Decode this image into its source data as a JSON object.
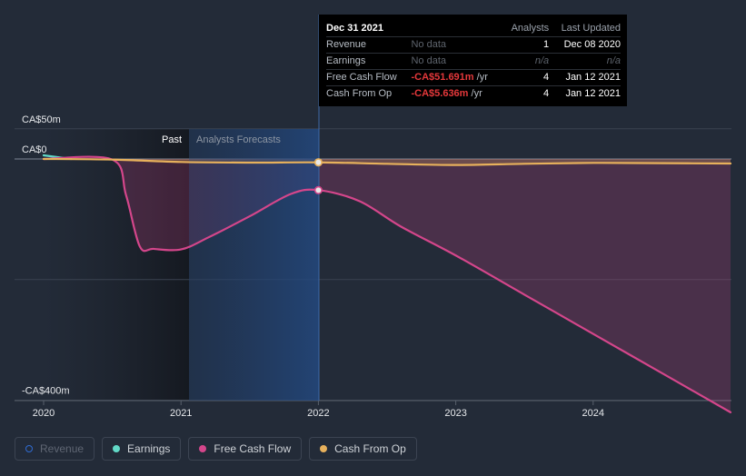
{
  "chart_data": {
    "type": "line",
    "currency_unit": "CA$ m",
    "y_ticks": [
      {
        "value": 50,
        "label": "CA$50m"
      },
      {
        "value": 0,
        "label": "CA$0"
      },
      {
        "value": -400,
        "label": "-CA$400m"
      }
    ],
    "ylim": [
      -400,
      50
    ],
    "x_ticks": [
      {
        "value": 2020,
        "label": "2020"
      },
      {
        "value": 2021,
        "label": "2021"
      },
      {
        "value": 2022,
        "label": "2022"
      },
      {
        "value": 2023,
        "label": "2023"
      },
      {
        "value": 2024,
        "label": "2024"
      }
    ],
    "xlim": [
      2019.8,
      2025.0
    ],
    "past_label": "Past",
    "forecast_label": "Analysts Forecasts",
    "forecast_start": 2021.05,
    "hover_x": 2022.0,
    "series": [
      {
        "name": "Earnings",
        "color": "#62d9c7",
        "points": [
          [
            2020.0,
            6
          ],
          [
            2020.2,
            0
          ]
        ]
      },
      {
        "name": "Free Cash Flow",
        "color": "#d4468b",
        "points": [
          [
            2020.0,
            0
          ],
          [
            2020.5,
            -1
          ],
          [
            2020.6,
            -60
          ],
          [
            2020.7,
            -145
          ],
          [
            2020.8,
            -149
          ],
          [
            2021.0,
            -150
          ],
          [
            2021.2,
            -130
          ],
          [
            2021.5,
            -95
          ],
          [
            2021.8,
            -58
          ],
          [
            2022.0,
            -51.691
          ],
          [
            2022.3,
            -70
          ],
          [
            2022.6,
            -112
          ],
          [
            2023.0,
            -160
          ],
          [
            2023.5,
            -225
          ],
          [
            2024.0,
            -290
          ],
          [
            2024.5,
            -355
          ],
          [
            2025.0,
            -420
          ]
        ],
        "fill": true
      },
      {
        "name": "Cash From Op",
        "color": "#e7b15c",
        "points": [
          [
            2020.0,
            0
          ],
          [
            2020.5,
            -1
          ],
          [
            2021.0,
            -5
          ],
          [
            2021.5,
            -6
          ],
          [
            2022.0,
            -5.636
          ],
          [
            2022.5,
            -8
          ],
          [
            2023.0,
            -10
          ],
          [
            2023.5,
            -8
          ],
          [
            2024.0,
            -6.5
          ],
          [
            2024.5,
            -7
          ],
          [
            2025.0,
            -7.5
          ]
        ],
        "fill": true
      }
    ],
    "highlight_points": [
      {
        "series": "Cash From Op",
        "x": 2022.0,
        "y": -5.636
      },
      {
        "series": "Free Cash Flow",
        "x": 2022.0,
        "y": -51.691
      }
    ]
  },
  "tooltip": {
    "date": "Dec 31 2021",
    "col_analysts": "Analysts",
    "col_updated": "Last Updated",
    "rows": [
      {
        "label": "Revenue",
        "value": "No data",
        "value_unit": "",
        "analysts": "1",
        "updated": "Dec 08 2020"
      },
      {
        "label": "Earnings",
        "value": "No data",
        "value_unit": "",
        "analysts": "n/a",
        "updated": "n/a"
      },
      {
        "label": "Free Cash Flow",
        "value": "-CA$51.691m",
        "value_unit": "/yr",
        "analysts": "4",
        "updated": "Jan 12 2021"
      },
      {
        "label": "Cash From Op",
        "value": "-CA$5.636m",
        "value_unit": "/yr",
        "analysts": "4",
        "updated": "Jan 12 2021"
      }
    ]
  },
  "legend": [
    {
      "label": "Revenue",
      "color": "#2f6bd1",
      "active": false
    },
    {
      "label": "Earnings",
      "color": "#62d9c7",
      "active": true
    },
    {
      "label": "Free Cash Flow",
      "color": "#d4468b",
      "active": true
    },
    {
      "label": "Cash From Op",
      "color": "#e7b15c",
      "active": true
    }
  ]
}
